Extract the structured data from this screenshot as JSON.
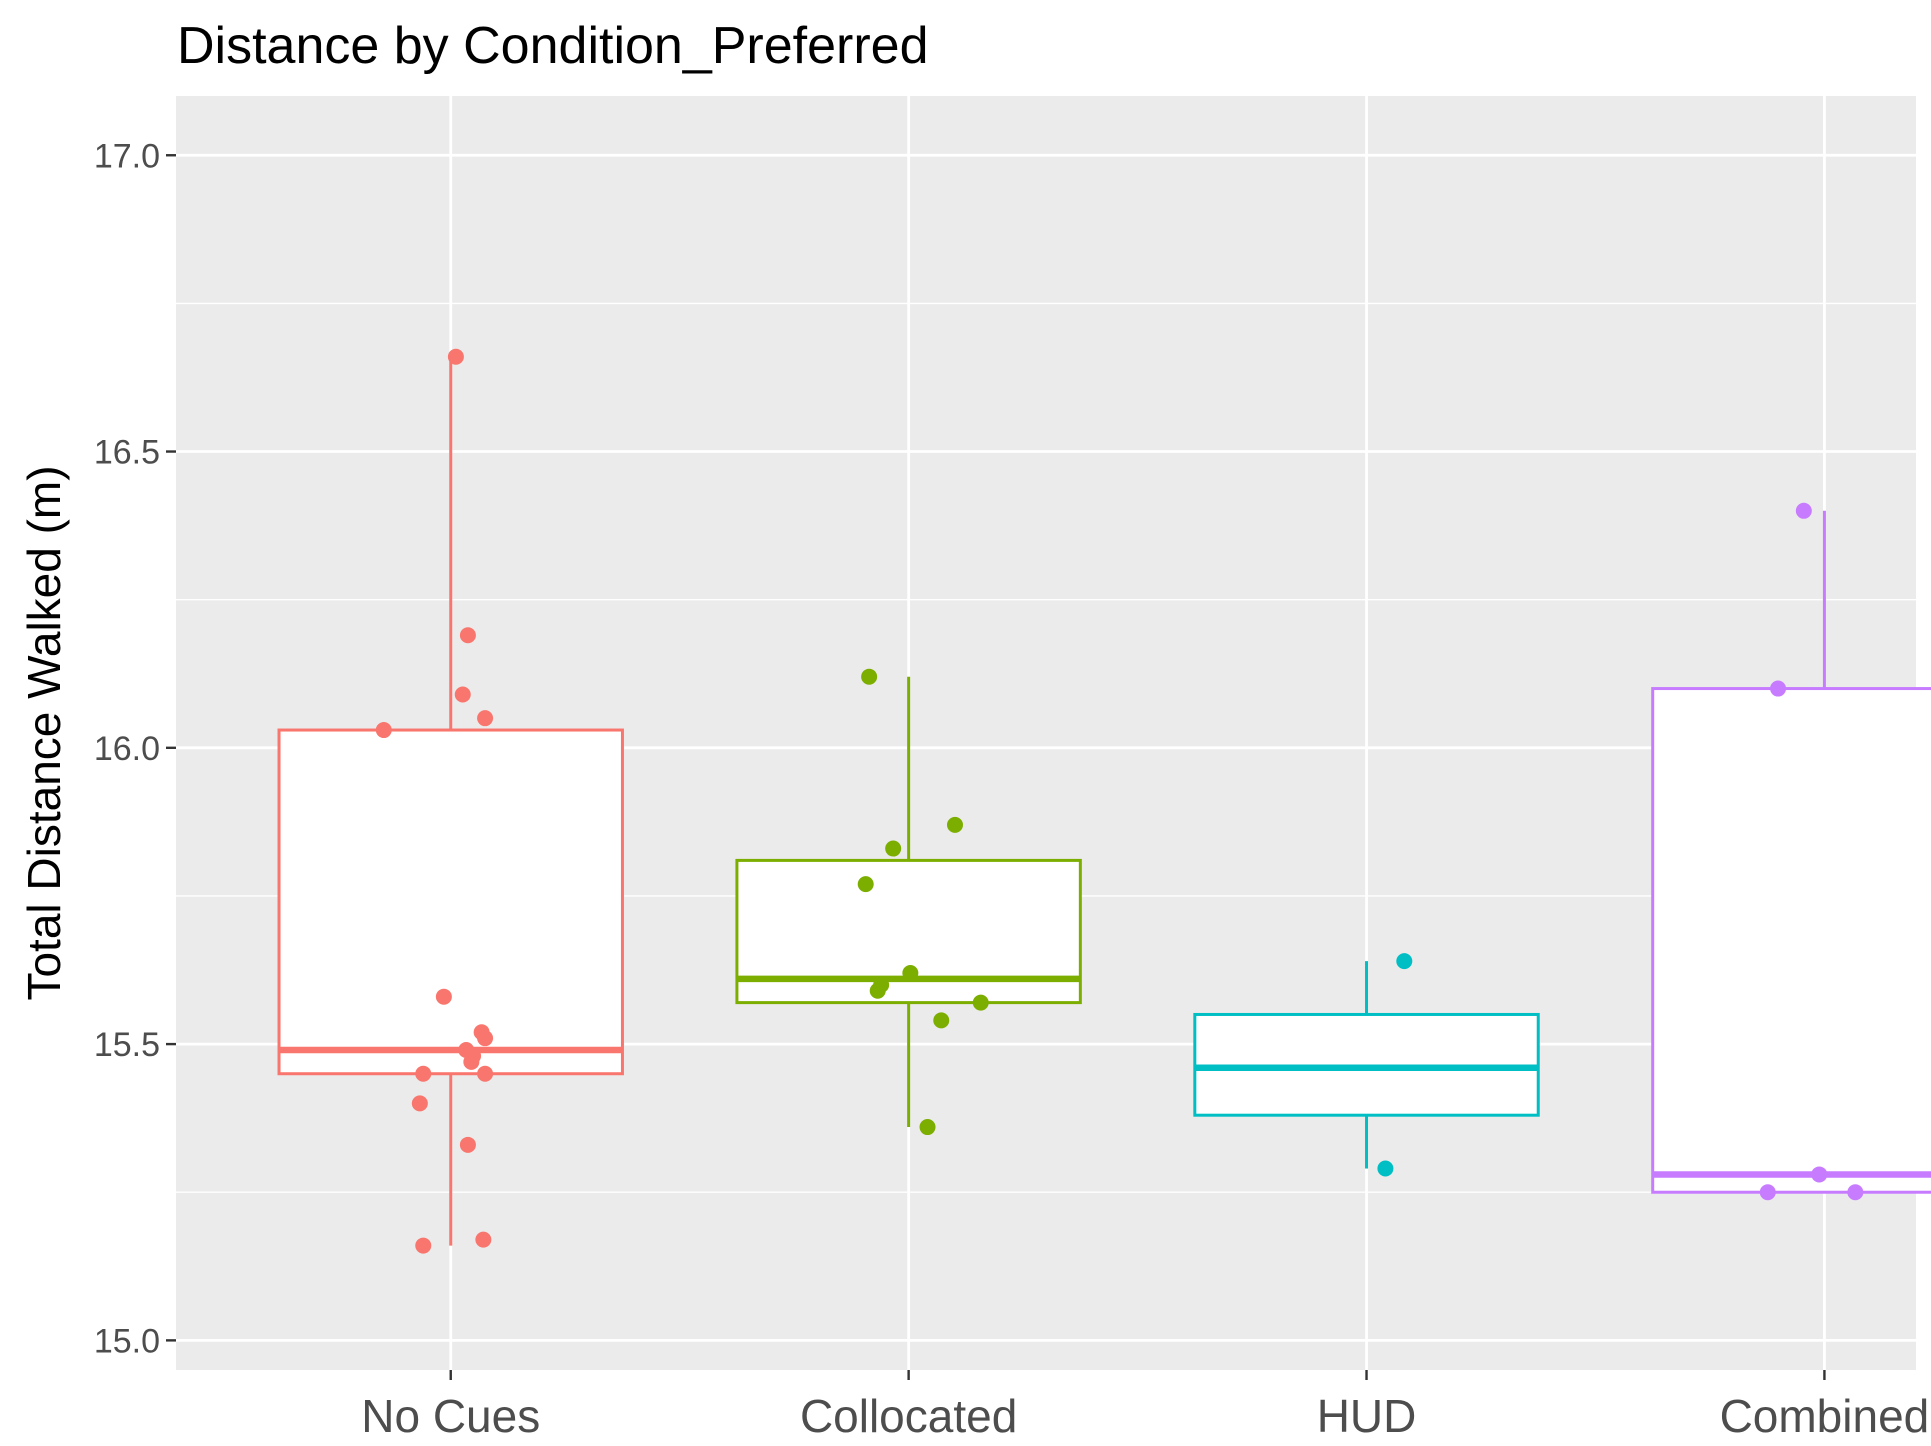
{
  "chart_data": {
    "type": "box",
    "title": "Distance by Condition_Preferred",
    "xlabel": "",
    "ylabel": "Total Distance Walked (m)",
    "ylim": [
      14.95,
      17.1
    ],
    "y_ticks": [
      "15.0",
      "15.5",
      "16.0",
      "16.5",
      "17.0"
    ],
    "grid": true,
    "legend": "none",
    "categories": [
      "No Cues",
      "Collocated",
      "HUD",
      "Combined"
    ],
    "series": [
      {
        "color": "#F8766D",
        "box": {
          "min": 15.16,
          "q1": 15.45,
          "median": 15.49,
          "q3": 16.03,
          "max": 16.66
        },
        "points": [
          16.66,
          16.19,
          16.09,
          16.05,
          16.03,
          15.58,
          15.52,
          15.51,
          15.49,
          15.48,
          15.47,
          15.45,
          15.45,
          15.4,
          15.33,
          15.17,
          15.16
        ]
      },
      {
        "color": "#7CAE00",
        "box": {
          "min": 15.36,
          "q1": 15.57,
          "median": 15.61,
          "q3": 15.81,
          "max": 16.12
        },
        "points": [
          16.12,
          15.87,
          15.83,
          15.77,
          15.62,
          15.6,
          15.59,
          15.57,
          15.54,
          15.36
        ]
      },
      {
        "color": "#00BFC4",
        "box": {
          "min": 15.29,
          "q1": 15.38,
          "median": 15.46,
          "q3": 15.55,
          "max": 15.64
        },
        "points": [
          15.64,
          15.29
        ]
      },
      {
        "color": "#C77CFF",
        "box": {
          "min": 15.25,
          "q1": 15.25,
          "median": 15.28,
          "q3": 16.1,
          "max": 16.4
        },
        "points": [
          16.4,
          16.1,
          15.28,
          15.25,
          15.25
        ]
      }
    ]
  }
}
